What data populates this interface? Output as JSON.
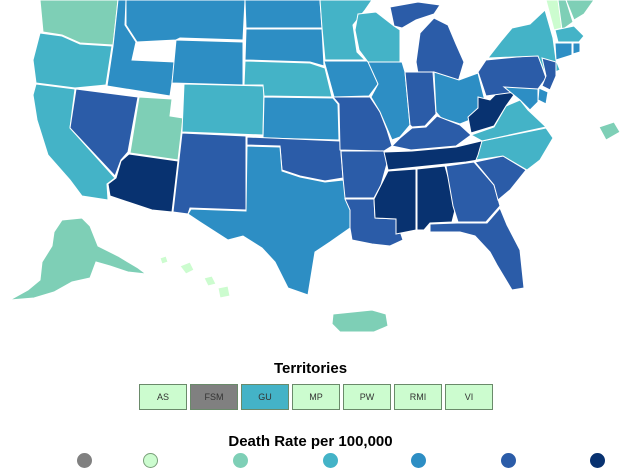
{
  "colors": {
    "no_data": "#808080",
    "bin1": "#ccfccf",
    "bin2": "#7ecfb6",
    "bin3": "#44b3c7",
    "bin4": "#2d8ec4",
    "bin5": "#2b5ca8",
    "bin6": "#083270"
  },
  "territories": {
    "title": "Territories",
    "items": [
      {
        "label": "AS",
        "color": "#ccfccf"
      },
      {
        "label": "FSM",
        "color": "#808080"
      },
      {
        "label": "GU",
        "color": "#44b3c7"
      },
      {
        "label": "MP",
        "color": "#ccfccf"
      },
      {
        "label": "PW",
        "color": "#ccfccf"
      },
      {
        "label": "RMI",
        "color": "#ccfccf"
      },
      {
        "label": "VI",
        "color": "#ccfccf"
      }
    ]
  },
  "legend": {
    "title": "Death Rate per 100,000",
    "bins": [
      "no_data",
      "bin1",
      "bin2",
      "bin3",
      "bin4",
      "bin5",
      "bin6"
    ]
  },
  "states": [
    {
      "id": "WA",
      "bin": "bin2"
    },
    {
      "id": "OR",
      "bin": "bin3"
    },
    {
      "id": "CA",
      "bin": "bin3"
    },
    {
      "id": "ID",
      "bin": "bin4"
    },
    {
      "id": "NV",
      "bin": "bin5"
    },
    {
      "id": "UT",
      "bin": "bin2"
    },
    {
      "id": "AZ",
      "bin": "bin6"
    },
    {
      "id": "MT",
      "bin": "bin4"
    },
    {
      "id": "WY",
      "bin": "bin4"
    },
    {
      "id": "CO",
      "bin": "bin3"
    },
    {
      "id": "NM",
      "bin": "bin5"
    },
    {
      "id": "ND",
      "bin": "bin4"
    },
    {
      "id": "SD",
      "bin": "bin4"
    },
    {
      "id": "NE",
      "bin": "bin3"
    },
    {
      "id": "KS",
      "bin": "bin4"
    },
    {
      "id": "OK",
      "bin": "bin5"
    },
    {
      "id": "TX",
      "bin": "bin4"
    },
    {
      "id": "MN",
      "bin": "bin3"
    },
    {
      "id": "IA",
      "bin": "bin4"
    },
    {
      "id": "MO",
      "bin": "bin5"
    },
    {
      "id": "AR",
      "bin": "bin5"
    },
    {
      "id": "LA",
      "bin": "bin5"
    },
    {
      "id": "WI",
      "bin": "bin3"
    },
    {
      "id": "IL",
      "bin": "bin4"
    },
    {
      "id": "MI",
      "bin": "bin5"
    },
    {
      "id": "IN",
      "bin": "bin5"
    },
    {
      "id": "OH",
      "bin": "bin4"
    },
    {
      "id": "KY",
      "bin": "bin5"
    },
    {
      "id": "TN",
      "bin": "bin6"
    },
    {
      "id": "MS",
      "bin": "bin6"
    },
    {
      "id": "AL",
      "bin": "bin6"
    },
    {
      "id": "GA",
      "bin": "bin5"
    },
    {
      "id": "FL",
      "bin": "bin5"
    },
    {
      "id": "SC",
      "bin": "bin5"
    },
    {
      "id": "NC",
      "bin": "bin3"
    },
    {
      "id": "VA",
      "bin": "bin3"
    },
    {
      "id": "WV",
      "bin": "bin6"
    },
    {
      "id": "PA",
      "bin": "bin5"
    },
    {
      "id": "NY",
      "bin": "bin3"
    },
    {
      "id": "VT",
      "bin": "bin1"
    },
    {
      "id": "NH",
      "bin": "bin2"
    },
    {
      "id": "ME",
      "bin": "bin2"
    },
    {
      "id": "MA",
      "bin": "bin3"
    },
    {
      "id": "CT",
      "bin": "bin4"
    },
    {
      "id": "RI",
      "bin": "bin4"
    },
    {
      "id": "NJ",
      "bin": "bin5"
    },
    {
      "id": "DE",
      "bin": "bin4"
    },
    {
      "id": "MD",
      "bin": "bin4"
    },
    {
      "id": "AK",
      "bin": "bin2"
    },
    {
      "id": "HI",
      "bin": "bin1"
    },
    {
      "id": "PR",
      "bin": "bin2"
    },
    {
      "id": "DC",
      "bin": "bin2"
    }
  ]
}
